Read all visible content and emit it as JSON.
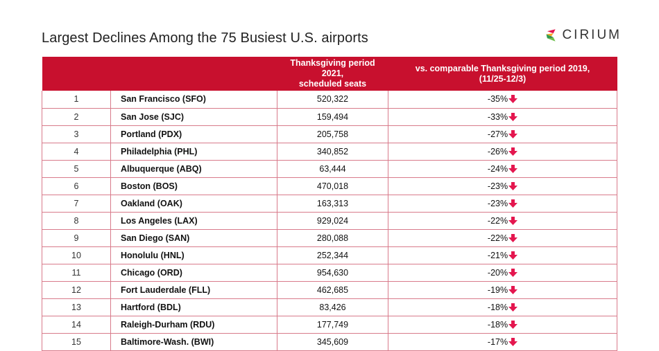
{
  "title": "Largest Declines Among the 75 Busiest U.S. airports",
  "logo": {
    "text": "CIRIUM"
  },
  "colors": {
    "header": "#c8102e",
    "arrow": "#e4174f",
    "border": "#d87a8a"
  },
  "chart_data": {
    "type": "table",
    "title": "Largest Declines Among the 75 Busiest U.S. airports",
    "columns": [
      "",
      "",
      "Thanksgiving period 2021, scheduled seats",
      "vs. comparable Thanksgiving period 2019, (11/25-12/3)"
    ],
    "headers": {
      "rank": "",
      "airport": "",
      "seats_line1": "Thanksgiving period 2021,",
      "seats_line2": "scheduled seats",
      "change_line1": "vs. comparable Thanksgiving period 2019,",
      "change_line2": "(11/25-12/3)"
    },
    "rows": [
      {
        "rank": "1",
        "airport": "San Francisco (SFO)",
        "seats": "520,322",
        "change": "-35%"
      },
      {
        "rank": "2",
        "airport": "San Jose (SJC)",
        "seats": "159,494",
        "change": "-33%"
      },
      {
        "rank": "3",
        "airport": "Portland (PDX)",
        "seats": "205,758",
        "change": "-27%"
      },
      {
        "rank": "4",
        "airport": "Philadelphia (PHL)",
        "seats": "340,852",
        "change": "-26%"
      },
      {
        "rank": "5",
        "airport": "Albuquerque (ABQ)",
        "seats": "63,444",
        "change": "-24%"
      },
      {
        "rank": "6",
        "airport": "Boston (BOS)",
        "seats": "470,018",
        "change": "-23%"
      },
      {
        "rank": "7",
        "airport": "Oakland (OAK)",
        "seats": "163,313",
        "change": "-23%"
      },
      {
        "rank": "8",
        "airport": "Los Angeles (LAX)",
        "seats": "929,024",
        "change": "-22%"
      },
      {
        "rank": "9",
        "airport": "San Diego (SAN)",
        "seats": "280,088",
        "change": "-22%"
      },
      {
        "rank": "10",
        "airport": "Honolulu (HNL)",
        "seats": "252,344",
        "change": "-21%"
      },
      {
        "rank": "11",
        "airport": "Chicago (ORD)",
        "seats": "954,630",
        "change": "-20%"
      },
      {
        "rank": "12",
        "airport": "Fort Lauderdale (FLL)",
        "seats": "462,685",
        "change": "-19%"
      },
      {
        "rank": "13",
        "airport": "Hartford (BDL)",
        "seats": "83,426",
        "change": "-18%"
      },
      {
        "rank": "14",
        "airport": "Raleigh-Durham (RDU)",
        "seats": "177,749",
        "change": "-18%"
      },
      {
        "rank": "15",
        "airport": "Baltimore-Wash. (BWI)",
        "seats": "345,609",
        "change": "-17%"
      }
    ],
    "change_icon": "down-arrow-icon"
  }
}
